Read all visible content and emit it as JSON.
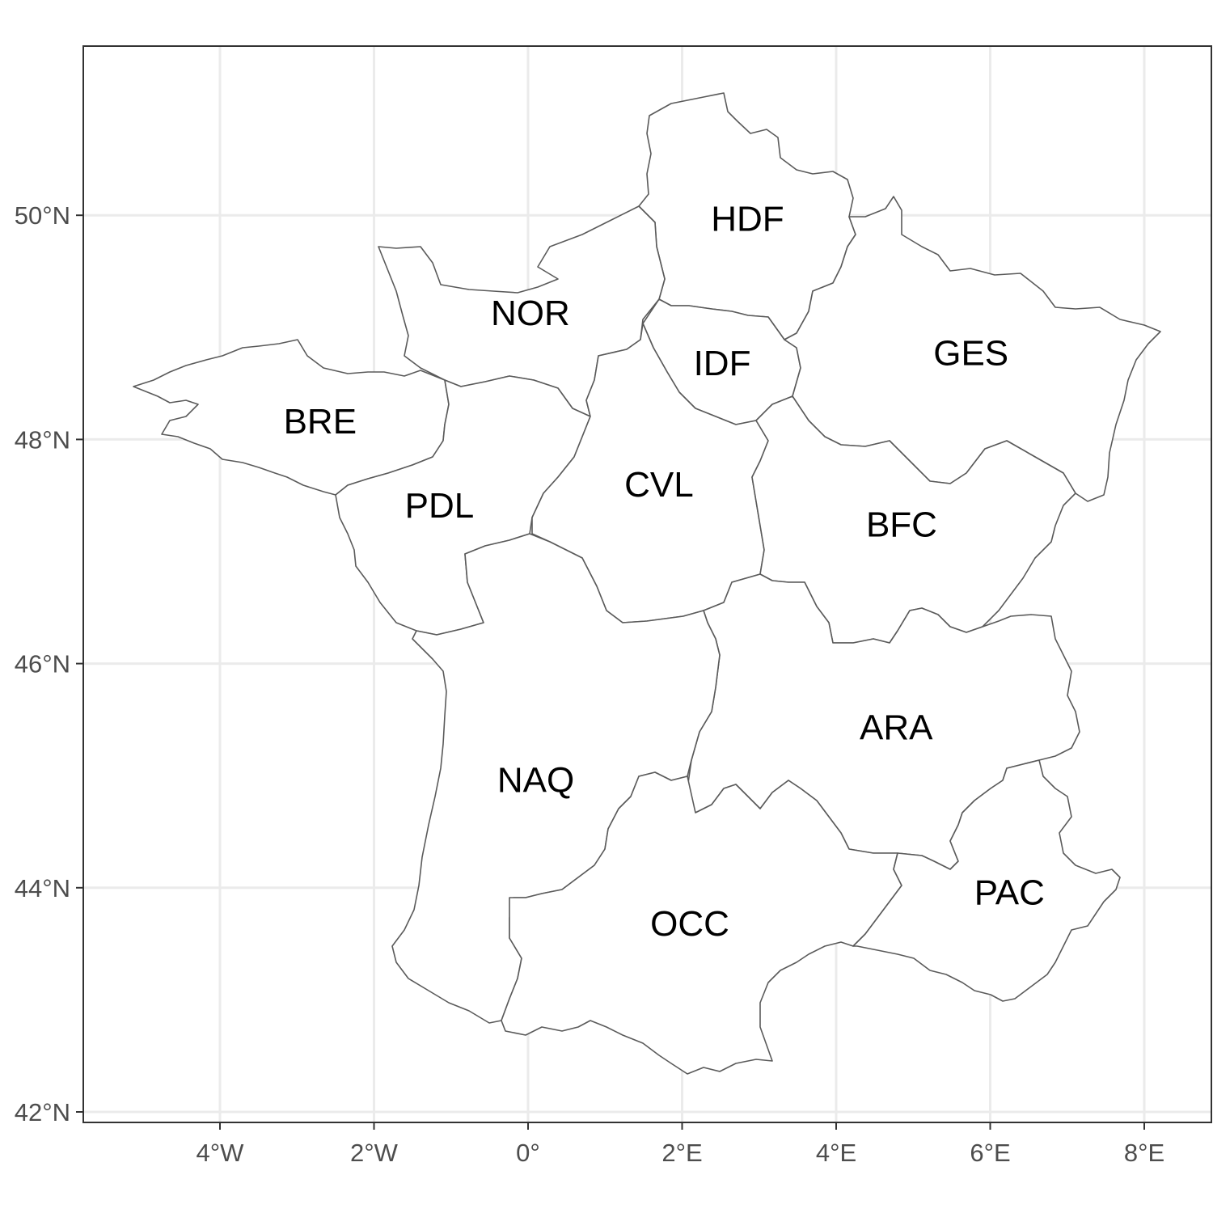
{
  "map": {
    "axes": {
      "x_ticks": [
        {
          "lon": -4,
          "label": "4°W"
        },
        {
          "lon": -2,
          "label": "2°W"
        },
        {
          "lon": 0,
          "label": "0°"
        },
        {
          "lon": 2,
          "label": "2°E"
        },
        {
          "lon": 4,
          "label": "4°E"
        },
        {
          "lon": 6,
          "label": "6°E"
        },
        {
          "lon": 8,
          "label": "8°E"
        }
      ],
      "y_ticks": [
        {
          "lat": 42,
          "label": "42°N"
        },
        {
          "lat": 44,
          "label": "44°N"
        },
        {
          "lat": 46,
          "label": "46°N"
        },
        {
          "lat": 48,
          "label": "48°N"
        },
        {
          "lat": 50,
          "label": "50°N"
        }
      ],
      "xlim": [
        -5.8,
        8.9
      ],
      "ylim": [
        41.9,
        51.5
      ],
      "grid": true
    },
    "regions": [
      {
        "code": "HDF",
        "lon": 2.85,
        "lat": 49.97
      },
      {
        "code": "NOR",
        "lon": 0.03,
        "lat": 49.13
      },
      {
        "code": "IDF",
        "lon": 2.52,
        "lat": 48.68
      },
      {
        "code": "GES",
        "lon": 5.75,
        "lat": 48.77
      },
      {
        "code": "BRE",
        "lon": -2.7,
        "lat": 48.16
      },
      {
        "code": "PDL",
        "lon": -1.15,
        "lat": 47.41
      },
      {
        "code": "CVL",
        "lon": 1.7,
        "lat": 47.6
      },
      {
        "code": "BFC",
        "lon": 4.85,
        "lat": 47.24
      },
      {
        "code": "ARA",
        "lon": 4.78,
        "lat": 45.43
      },
      {
        "code": "NAQ",
        "lon": 0.1,
        "lat": 44.96
      },
      {
        "code": "PAC",
        "lon": 6.25,
        "lat": 43.96
      },
      {
        "code": "OCC",
        "lon": 2.1,
        "lat": 43.68
      }
    ]
  }
}
